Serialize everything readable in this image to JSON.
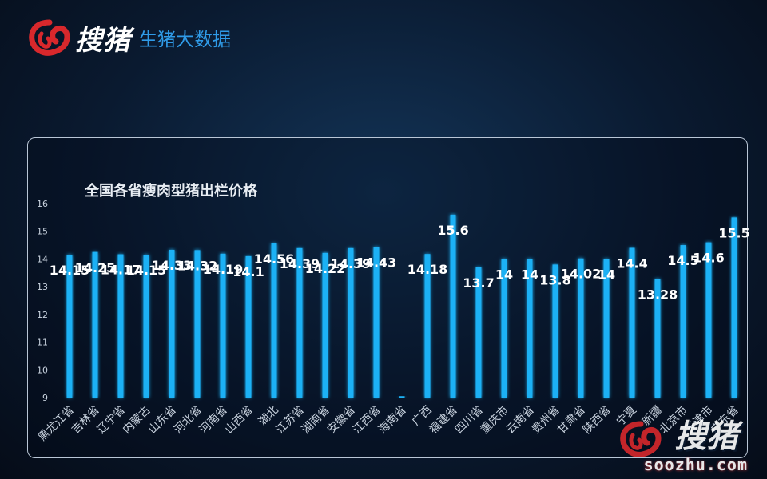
{
  "header": {
    "brand": "搜猪",
    "subtitle": "生猪大数据"
  },
  "watermark": {
    "brand": "搜猪",
    "site": "soozhu.com"
  },
  "colors": {
    "bar": "#1fb1f5",
    "bar_glow": "#0a6fb8",
    "label": "#ffffff",
    "tick": "#c8d2de",
    "logo_red": "#d8282c"
  },
  "chart_data": {
    "type": "bar",
    "title": "全国各省瘦肉型猪出栏价格",
    "xlabel": "",
    "ylabel": "",
    "ylim": [
      9,
      16
    ],
    "yticks": [
      9,
      10,
      11,
      12,
      13,
      14,
      15,
      16
    ],
    "grid": false,
    "categories": [
      "黑龙江省",
      "吉林省",
      "辽宁省",
      "内蒙古",
      "山东省",
      "河北省",
      "河南省",
      "山西省",
      "湖北",
      "江苏省",
      "湖南省",
      "安徽省",
      "江西省",
      "海南省",
      "广西",
      "福建省",
      "四川省",
      "重庆市",
      "云南省",
      "贵州省",
      "甘肃省",
      "陕西省",
      "宁夏",
      "新疆",
      "北京市",
      "天津市",
      "广东省"
    ],
    "values": [
      14.15,
      14.25,
      14.17,
      14.15,
      14.33,
      14.32,
      14.19,
      14.1,
      14.56,
      14.39,
      14.22,
      14.39,
      14.43,
      9.05,
      14.18,
      15.6,
      13.7,
      14,
      14,
      13.8,
      14.02,
      14,
      14.4,
      13.28,
      14.5,
      14.6,
      15.5
    ],
    "labels": [
      "14.15",
      "14.25",
      "14.17",
      "14.15",
      "14.33",
      "14.32",
      "14.19",
      "14.1",
      "14.56",
      "14.39",
      "14.22",
      "14.39",
      "14.43",
      "",
      "14.18",
      "15.6",
      "13.7",
      "14",
      "14",
      "13.8",
      "14.02",
      "14",
      "14.4",
      "13.28",
      "14.5",
      "14.6",
      "15.5"
    ]
  }
}
